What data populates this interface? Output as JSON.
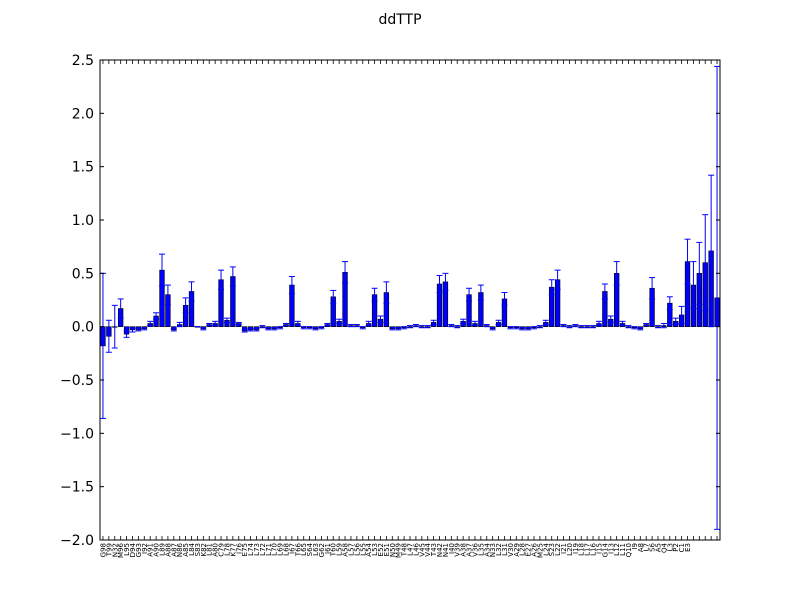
{
  "chart_data": {
    "type": "bar",
    "title": "ddTTP",
    "xlabel": "",
    "ylabel": "",
    "ylim": [
      -2.0,
      2.5
    ],
    "yticks": [
      -2.0,
      -1.5,
      -1.0,
      -0.5,
      0.0,
      0.5,
      1.0,
      1.5,
      2.0,
      2.5
    ],
    "ytick_labels": [
      "−2.0",
      "−1.5",
      "−1.0",
      "−0.5",
      "0.0",
      "0.5",
      "1.0",
      "1.5",
      "2.0",
      "2.5"
    ],
    "grid": false,
    "legend": "none",
    "bar_color": "#0000ff",
    "edge_color": "#000000",
    "error_color": "#0000ff",
    "categories": [
      "G98",
      "T99",
      "N32",
      "M96",
      "L95",
      "D94",
      "G93",
      "I92",
      "A91",
      "A90",
      "L89",
      "A88",
      "A87",
      "N86",
      "A85",
      "L84",
      "S83",
      "K82",
      "L81",
      "A80",
      "C79",
      "L78",
      "K77",
      "I76",
      "E75",
      "L74",
      "L73",
      "L72",
      "L71",
      "L70",
      "L69",
      "L68",
      "I67",
      "T66",
      "L65",
      "S64",
      "L63",
      "G62",
      "I61",
      "T60",
      "L59",
      "A58",
      "L57",
      "L56",
      "L55",
      "A54",
      "L53",
      "E52",
      "E51",
      "N50",
      "M49",
      "T48",
      "L47",
      "L46",
      "V45",
      "V44",
      "T43",
      "N42",
      "N41",
      "I40",
      "V39",
      "A38",
      "A37",
      "V36",
      "L35",
      "A34",
      "N33",
      "L32",
      "L31",
      "V30",
      "A29",
      "L28",
      "E27",
      "A26",
      "M25",
      "L24",
      "S23",
      "L22",
      "I21",
      "L20",
      "I19",
      "L18",
      "L17",
      "L16",
      "I15",
      "G14",
      "I13",
      "L12",
      "L11",
      "Q10",
      "I9",
      "A8",
      "L7",
      "S6",
      "A5",
      "Q4",
      "L3",
      "P2",
      "C1",
      "E3"
    ],
    "values": [
      -0.18,
      -0.09,
      0.0,
      0.17,
      -0.07,
      -0.03,
      -0.03,
      -0.02,
      0.03,
      0.1,
      0.53,
      0.3,
      -0.03,
      0.02,
      0.2,
      0.33,
      0.0,
      -0.02,
      0.02,
      0.03,
      0.44,
      0.06,
      0.47,
      0.03,
      -0.04,
      -0.03,
      -0.03,
      0.0,
      -0.02,
      -0.02,
      -0.01,
      0.02,
      0.39,
      0.03,
      -0.01,
      -0.01,
      -0.02,
      -0.01,
      0.02,
      0.28,
      0.05,
      0.51,
      0.01,
      0.01,
      -0.01,
      0.03,
      0.3,
      0.07,
      0.32,
      -0.02,
      -0.02,
      -0.01,
      0.0,
      0.01,
      0.0,
      0.0,
      0.04,
      0.4,
      0.42,
      0.01,
      0.0,
      0.05,
      0.3,
      0.03,
      0.32,
      0.01,
      -0.02,
      0.04,
      0.26,
      -0.01,
      -0.01,
      -0.02,
      -0.02,
      -0.01,
      0.0,
      0.04,
      0.37,
      0.44,
      0.01,
      0.0,
      0.01,
      0.0,
      0.0,
      0.0,
      0.03,
      0.33,
      0.07,
      0.5,
      0.03,
      0.0,
      -0.01,
      -0.02,
      0.02,
      0.36,
      0.0,
      0.01,
      0.22,
      0.05,
      0.11,
      0.61
    ],
    "errors": [
      0.68,
      0.15,
      0.2,
      0.09,
      0.03,
      0.02,
      0.01,
      0.01,
      0.02,
      0.03,
      0.15,
      0.09,
      0.01,
      0.02,
      0.07,
      0.09,
      0.0,
      0.01,
      0.01,
      0.02,
      0.09,
      0.02,
      0.09,
      0.01,
      0.01,
      0.01,
      0.01,
      0.01,
      0.01,
      0.01,
      0.01,
      0.01,
      0.08,
      0.02,
      0.01,
      0.01,
      0.01,
      0.01,
      0.01,
      0.06,
      0.02,
      0.1,
      0.01,
      0.01,
      0.01,
      0.02,
      0.06,
      0.03,
      0.1,
      0.01,
      0.01,
      0.01,
      0.01,
      0.01,
      0.01,
      0.01,
      0.02,
      0.08,
      0.08,
      0.01,
      0.01,
      0.02,
      0.06,
      0.02,
      0.07,
      0.01,
      0.01,
      0.02,
      0.06,
      0.01,
      0.01,
      0.01,
      0.01,
      0.01,
      0.01,
      0.02,
      0.07,
      0.09,
      0.01,
      0.01,
      0.01,
      0.01,
      0.01,
      0.01,
      0.02,
      0.07,
      0.03,
      0.11,
      0.02,
      0.01,
      0.01,
      0.01,
      0.01,
      0.1,
      0.01,
      0.02,
      0.06,
      0.03,
      0.08,
      0.21
    ],
    "extra_bars": [
      {
        "value": 0.39,
        "error": 0.22
      },
      {
        "value": 0.5,
        "error": 0.29
      },
      {
        "value": 0.6,
        "error": 0.45
      },
      {
        "value": 0.71,
        "error": 0.71
      },
      {
        "value": 0.27,
        "error": 2.17
      }
    ]
  }
}
